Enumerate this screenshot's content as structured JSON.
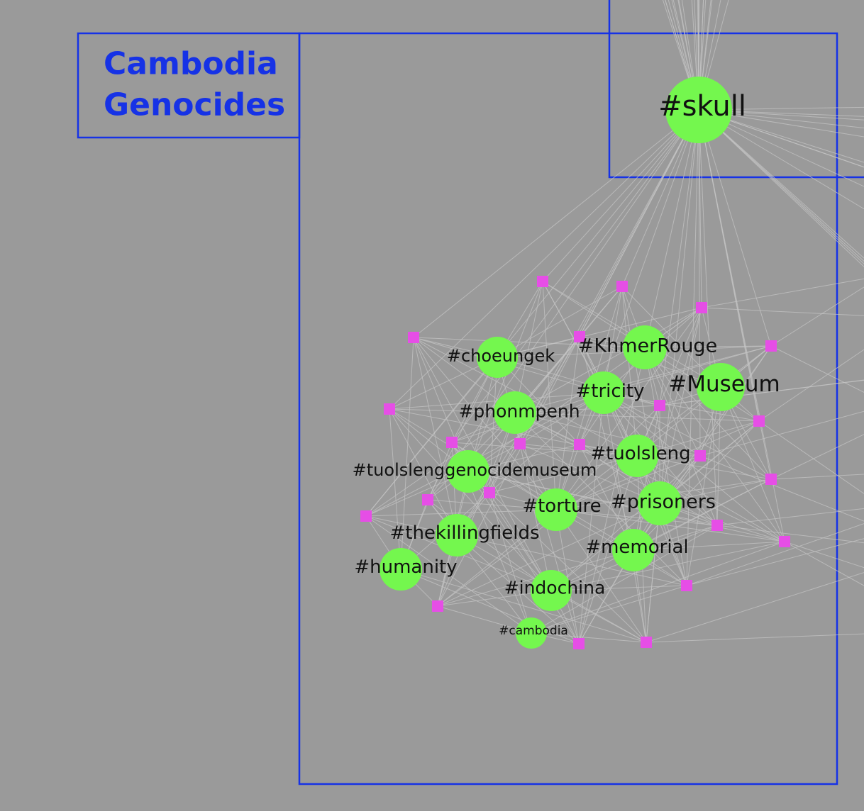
{
  "title": {
    "line1": "Cambodia",
    "line2": "Genocides"
  },
  "colors": {
    "background": "#9a9a9a",
    "frame": "#1632e6",
    "hashtag_node": "#74f74e",
    "post_node": "#e64ee6",
    "edge": "#c4c4c4"
  },
  "hashtags": [
    {
      "id": "skull",
      "label": "#skull"
    },
    {
      "id": "KhmerRouge",
      "label": "#KhmerRouge"
    },
    {
      "id": "choeungek",
      "label": "#choeungek"
    },
    {
      "id": "Museum",
      "label": "#Museum"
    },
    {
      "id": "tricity",
      "label": "#tricity"
    },
    {
      "id": "phonmpenh",
      "label": "#phonmpenh"
    },
    {
      "id": "tuolsleng",
      "label": "#tuolsleng"
    },
    {
      "id": "tuolslenggenocidemuseum",
      "label": "#tuolslenggenocidemuseum"
    },
    {
      "id": "prisoners",
      "label": "#prisoners"
    },
    {
      "id": "torture",
      "label": "#torture"
    },
    {
      "id": "thekillingfields",
      "label": "#thekillingfields"
    },
    {
      "id": "memorial",
      "label": "#memorial"
    },
    {
      "id": "humanity",
      "label": "#humanity"
    },
    {
      "id": "indochina",
      "label": "#indochina"
    },
    {
      "id": "cambodia",
      "label": "#cambodia"
    }
  ]
}
